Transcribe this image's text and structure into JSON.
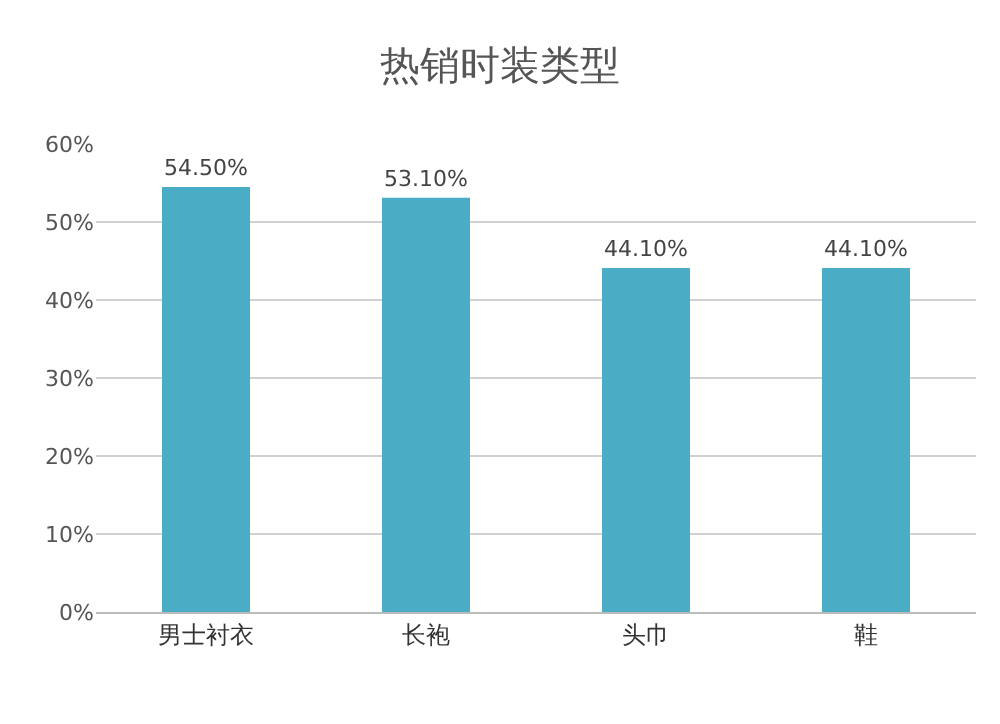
{
  "chart_data": {
    "type": "bar",
    "title": "热销时装类型",
    "categories": [
      "男士衬衣",
      "长袍",
      "头巾",
      "鞋"
    ],
    "values": [
      54.5,
      53.1,
      44.1,
      44.1
    ],
    "value_labels": [
      "54.50%",
      "53.10%",
      "44.10%",
      "44.10%"
    ],
    "color": "#4bacc6",
    "ylim": [
      0,
      60
    ],
    "yticks": [
      {
        "value": 0,
        "label": "0%"
      },
      {
        "value": 10,
        "label": "10%"
      },
      {
        "value": 20,
        "label": "20%"
      },
      {
        "value": 30,
        "label": "30%"
      },
      {
        "value": 40,
        "label": "40%"
      },
      {
        "value": 50,
        "label": "50%"
      },
      {
        "value": 60,
        "label": "60%"
      }
    ],
    "grid": "y"
  }
}
